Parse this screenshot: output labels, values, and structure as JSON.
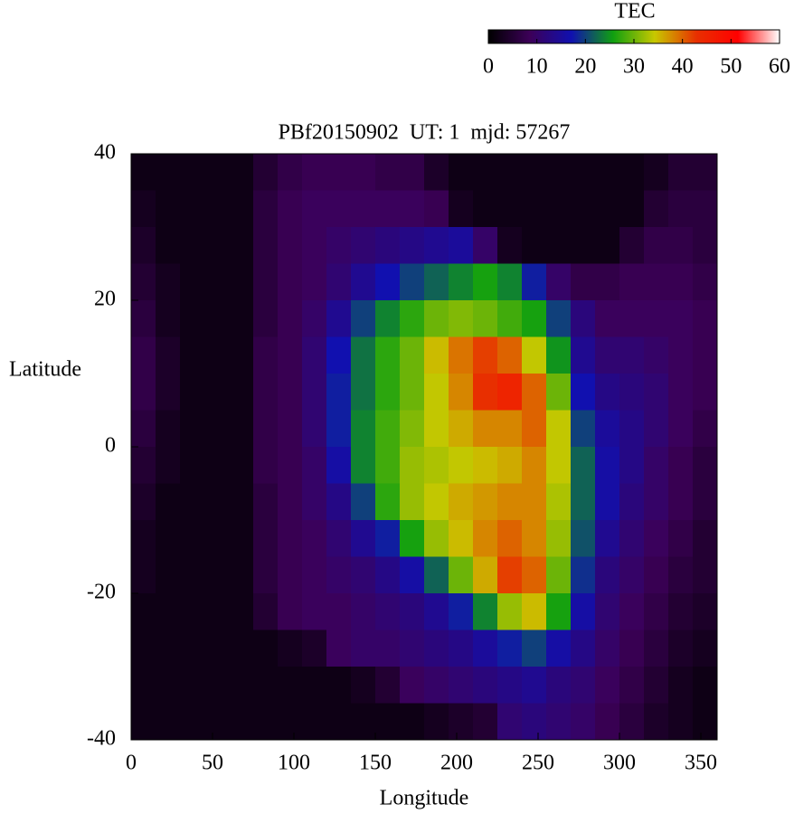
{
  "chart_data": {
    "type": "heatmap",
    "title": "PBf20150902  UT: 1  mjd: 57267",
    "xlabel": "Longitude",
    "ylabel": "Latitude",
    "colorbar_label": "TEC",
    "xlim": [
      0,
      360
    ],
    "xticks": [
      0,
      50,
      100,
      150,
      200,
      250,
      300,
      350
    ],
    "ylim": [
      -40,
      40
    ],
    "yticks": [
      -40,
      -20,
      0,
      20,
      40
    ],
    "clim": [
      0,
      60
    ],
    "cticks": [
      0,
      10,
      20,
      30,
      40,
      50,
      60
    ],
    "colors": [
      "#000000",
      "#3c0058",
      "#1010b0",
      "#10a010",
      "#c8c800",
      "#e83000",
      "#ff0000",
      "#ffffff"
    ],
    "x": [
      7.5,
      22.5,
      37.5,
      52.5,
      67.5,
      82.5,
      97.5,
      112.5,
      127.5,
      142.5,
      157.5,
      172.5,
      187.5,
      202.5,
      217.5,
      232.5,
      247.5,
      262.5,
      277.5,
      292.5,
      307.5,
      322.5,
      337.5,
      352.5
    ],
    "y": [
      37.5,
      32.5,
      27.5,
      22.5,
      17.5,
      12.5,
      7.5,
      2.5,
      -2.5,
      -7.5,
      -12.5,
      -17.5,
      -22.5,
      -27.5,
      -32.5,
      -37.5
    ],
    "z": [
      [
        2,
        2,
        2,
        2,
        2,
        5,
        7,
        8,
        8,
        8,
        7,
        7,
        4,
        2,
        2,
        2,
        2,
        2,
        2,
        2,
        2,
        3,
        5,
        5
      ],
      [
        3,
        2,
        2,
        2,
        2,
        6,
        8,
        9,
        9,
        9,
        9,
        9,
        8,
        3,
        2,
        2,
        2,
        2,
        2,
        2,
        2,
        5,
        6,
        6
      ],
      [
        4,
        2,
        2,
        2,
        2,
        6,
        8,
        9,
        10,
        11,
        12,
        13,
        14,
        15,
        10,
        3,
        2,
        2,
        2,
        2,
        5,
        7,
        7,
        6
      ],
      [
        5,
        3,
        2,
        2,
        2,
        6,
        8,
        9,
        11,
        14,
        17,
        20,
        22,
        24,
        26,
        24,
        18,
        10,
        7,
        7,
        8,
        8,
        8,
        7
      ],
      [
        6,
        3,
        2,
        2,
        2,
        6,
        8,
        10,
        14,
        20,
        24,
        27,
        30,
        31,
        30,
        28,
        26,
        20,
        12,
        9,
        9,
        9,
        9,
        8
      ],
      [
        7,
        4,
        2,
        2,
        2,
        7,
        8,
        11,
        17,
        23,
        27,
        30,
        35,
        39,
        42,
        40,
        34,
        25,
        14,
        11,
        11,
        10,
        9,
        8
      ],
      [
        7,
        4,
        2,
        2,
        2,
        7,
        8,
        11,
        18,
        23,
        27,
        30,
        34,
        38,
        43,
        45,
        40,
        30,
        17,
        13,
        12,
        11,
        9,
        8
      ],
      [
        6,
        3,
        2,
        2,
        2,
        7,
        8,
        11,
        18,
        24,
        28,
        31,
        34,
        36,
        38,
        38,
        40,
        34,
        20,
        15,
        13,
        11,
        9,
        7
      ],
      [
        5,
        3,
        2,
        2,
        2,
        7,
        8,
        10,
        16,
        24,
        28,
        32,
        33,
        34,
        35,
        36,
        38,
        34,
        22,
        16,
        13,
        10,
        8,
        6
      ],
      [
        4,
        2,
        2,
        2,
        2,
        6,
        8,
        10,
        13,
        20,
        27,
        32,
        34,
        36,
        37,
        38,
        38,
        33,
        22,
        16,
        12,
        10,
        8,
        6
      ],
      [
        3,
        2,
        2,
        2,
        2,
        6,
        8,
        9,
        11,
        14,
        18,
        26,
        32,
        35,
        38,
        40,
        38,
        32,
        21,
        14,
        11,
        9,
        7,
        5
      ],
      [
        3,
        2,
        2,
        2,
        2,
        6,
        8,
        9,
        10,
        11,
        13,
        16,
        22,
        30,
        36,
        42,
        40,
        30,
        19,
        12,
        10,
        8,
        6,
        5
      ],
      [
        2,
        2,
        2,
        2,
        2,
        5,
        8,
        9,
        9,
        10,
        11,
        12,
        14,
        18,
        24,
        32,
        35,
        26,
        16,
        11,
        9,
        7,
        5,
        4
      ],
      [
        2,
        2,
        2,
        2,
        2,
        2,
        3,
        4,
        9,
        10,
        10,
        11,
        12,
        13,
        15,
        18,
        20,
        16,
        13,
        10,
        8,
        6,
        4,
        3
      ],
      [
        2,
        2,
        2,
        2,
        2,
        2,
        2,
        2,
        2,
        3,
        5,
        9,
        10,
        11,
        12,
        13,
        14,
        12,
        11,
        9,
        7,
        5,
        3,
        2
      ],
      [
        2,
        2,
        2,
        2,
        2,
        2,
        2,
        2,
        2,
        2,
        2,
        2,
        3,
        4,
        5,
        11,
        12,
        11,
        10,
        8,
        6,
        4,
        3,
        2
      ]
    ]
  }
}
